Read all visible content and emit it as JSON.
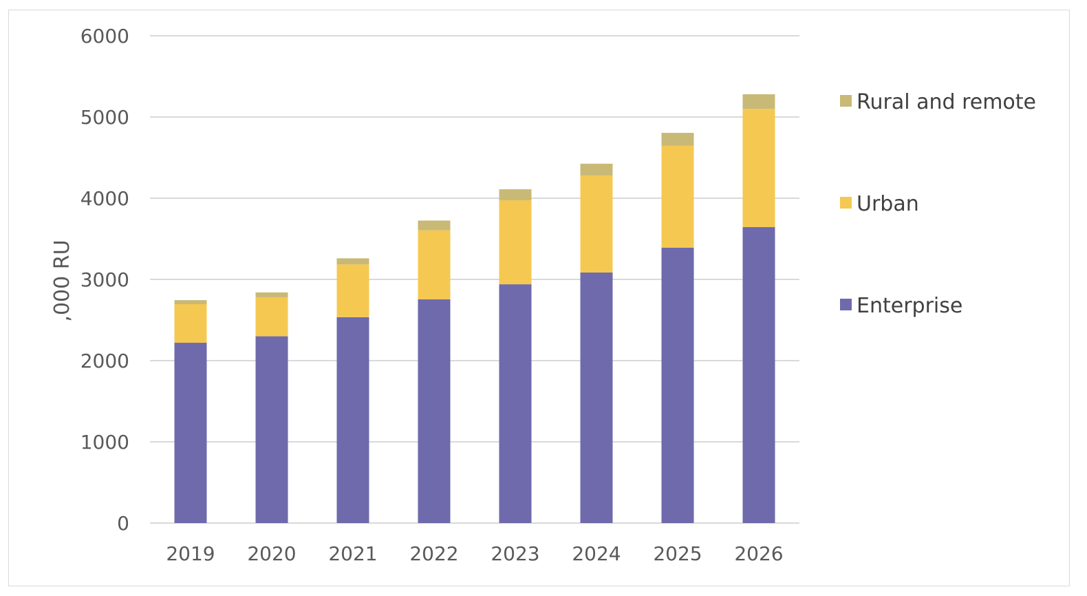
{
  "chart_data": {
    "type": "bar",
    "stacked": true,
    "title": "",
    "xlabel": "",
    "ylabel": ",000 RU",
    "ylim": [
      0,
      6000
    ],
    "yticks": [
      0,
      1000,
      2000,
      3000,
      4000,
      5000,
      6000
    ],
    "grid": true,
    "legend_position": "right",
    "categories": [
      "2019",
      "2020",
      "2021",
      "2022",
      "2023",
      "2024",
      "2025",
      "2026"
    ],
    "series": [
      {
        "name": "Enterprise",
        "color": "#6e6aab",
        "values": [
          2220,
          2300,
          2535,
          2755,
          2940,
          3085,
          3390,
          3645
        ]
      },
      {
        "name": "Urban",
        "color": "#f5c852",
        "values": [
          475,
          480,
          650,
          850,
          1035,
          1195,
          1255,
          1455
        ]
      },
      {
        "name": "Rural and remote",
        "color": "#c9b977",
        "values": [
          50,
          60,
          75,
          120,
          135,
          145,
          160,
          180
        ]
      }
    ]
  }
}
